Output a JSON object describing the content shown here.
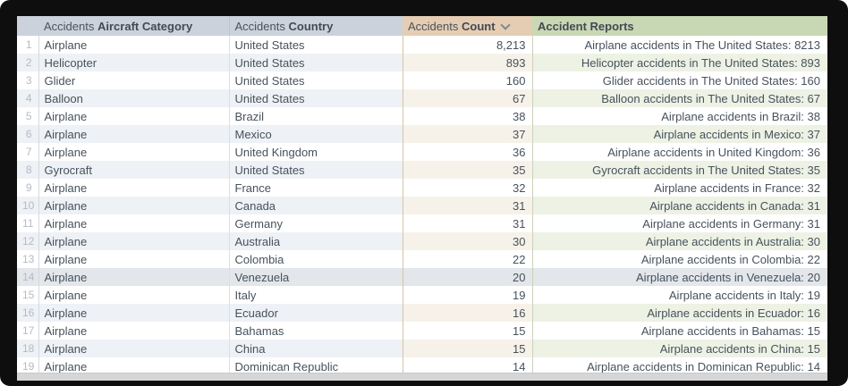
{
  "table": {
    "header": {
      "category": {
        "prefix": "Accidents ",
        "label": "Aircraft Category"
      },
      "country": {
        "prefix": "Accidents ",
        "label": "Country"
      },
      "count": {
        "prefix": "Accidents ",
        "label": "Count",
        "sort": "descending"
      },
      "reports": {
        "label": "Accident Reports"
      }
    },
    "rows": [
      {
        "num": "1",
        "category": "Airplane",
        "country": "United States",
        "count": "8,213",
        "report": "Airplane accidents in The United States: 8213",
        "highlighted": false
      },
      {
        "num": "2",
        "category": "Helicopter",
        "country": "United States",
        "count": "893",
        "report": "Helicopter accidents in The United States: 893",
        "highlighted": false
      },
      {
        "num": "3",
        "category": "Glider",
        "country": "United States",
        "count": "160",
        "report": "Glider accidents in The United States: 160",
        "highlighted": false
      },
      {
        "num": "4",
        "category": "Balloon",
        "country": "United States",
        "count": "67",
        "report": "Balloon accidents in The United States: 67",
        "highlighted": false
      },
      {
        "num": "5",
        "category": "Airplane",
        "country": "Brazil",
        "count": "38",
        "report": "Airplane accidents in Brazil: 38",
        "highlighted": false
      },
      {
        "num": "6",
        "category": "Airplane",
        "country": "Mexico",
        "count": "37",
        "report": "Airplane accidents in Mexico: 37",
        "highlighted": false
      },
      {
        "num": "7",
        "category": "Airplane",
        "country": "United Kingdom",
        "count": "36",
        "report": "Airplane accidents in United Kingdom: 36",
        "highlighted": false
      },
      {
        "num": "8",
        "category": "Gyrocraft",
        "country": "United States",
        "count": "35",
        "report": "Gyrocraft accidents in The United States: 35",
        "highlighted": false
      },
      {
        "num": "9",
        "category": "Airplane",
        "country": "France",
        "count": "32",
        "report": "Airplane accidents in France: 32",
        "highlighted": false
      },
      {
        "num": "10",
        "category": "Airplane",
        "country": "Canada",
        "count": "31",
        "report": "Airplane accidents in Canada: 31",
        "highlighted": false
      },
      {
        "num": "11",
        "category": "Airplane",
        "country": "Germany",
        "count": "31",
        "report": "Airplane accidents in Germany: 31",
        "highlighted": false
      },
      {
        "num": "12",
        "category": "Airplane",
        "country": "Australia",
        "count": "30",
        "report": "Airplane accidents in Australia: 30",
        "highlighted": false
      },
      {
        "num": "13",
        "category": "Airplane",
        "country": "Colombia",
        "count": "22",
        "report": "Airplane accidents in Colombia: 22",
        "highlighted": false
      },
      {
        "num": "14",
        "category": "Airplane",
        "country": "Venezuela",
        "count": "20",
        "report": "Airplane accidents in Venezuela: 20",
        "highlighted": true
      },
      {
        "num": "15",
        "category": "Airplane",
        "country": "Italy",
        "count": "19",
        "report": "Airplane accidents in Italy: 19",
        "highlighted": false
      },
      {
        "num": "16",
        "category": "Airplane",
        "country": "Ecuador",
        "count": "16",
        "report": "Airplane accidents in Ecuador: 16",
        "highlighted": false
      },
      {
        "num": "17",
        "category": "Airplane",
        "country": "Bahamas",
        "count": "15",
        "report": "Airplane accidents in Bahamas: 15",
        "highlighted": false
      },
      {
        "num": "18",
        "category": "Airplane",
        "country": "China",
        "count": "15",
        "report": "Airplane accidents in China: 15",
        "highlighted": false
      },
      {
        "num": "19",
        "category": "Airplane",
        "country": "Dominican Republic",
        "count": "14",
        "report": "Airplane accidents in Dominican Republic: 14",
        "highlighted": false
      }
    ]
  },
  "colors": {
    "header_blue": "#cbd2dc",
    "header_tan": "#e5cdb4",
    "header_green": "#c9d8b4",
    "stripe_blue": "#eef1f5",
    "stripe_tan": "#f7f2e9",
    "stripe_green": "#edf2e5",
    "highlight_row": "#e3e6ea",
    "frame": "#0e0e0e"
  }
}
